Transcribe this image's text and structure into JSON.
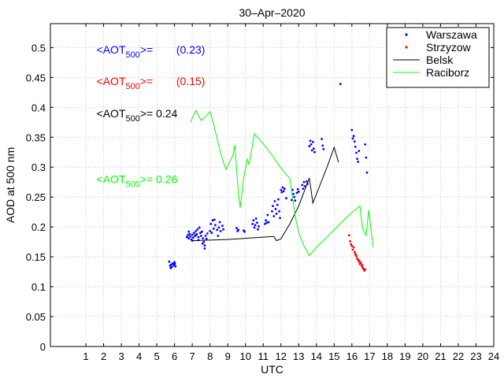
{
  "chart_data": {
    "type": "scatter",
    "title": "30–Apr–2020",
    "xlabel": "UTC",
    "ylabel": "AOD at 500 nm",
    "xlim": [
      -1,
      24
    ],
    "ylim": [
      0,
      0.54
    ],
    "x_ticks": [
      1,
      2,
      3,
      4,
      5,
      6,
      7,
      8,
      9,
      10,
      11,
      12,
      13,
      14,
      15,
      16,
      17,
      18,
      19,
      20,
      21,
      22,
      23,
      24
    ],
    "y_ticks": [
      0,
      0.05,
      0.1,
      0.15,
      0.2,
      0.25,
      0.3,
      0.35,
      0.4,
      0.45,
      0.5
    ],
    "grid": true,
    "legend_position": "top-right",
    "annotations": [
      {
        "prefix": "<AOT",
        "sub": "500",
        "suffix": ">=",
        "value": "(0.23)",
        "color": "#0000ff",
        "x": 1.6,
        "y": 0.49,
        "value_x": 6.1
      },
      {
        "prefix": "<AOT",
        "sub": "500",
        "suffix": ">=",
        "value": "(0.15)",
        "color": "#ff0000",
        "x": 1.6,
        "y": 0.437,
        "value_x": 6.1
      },
      {
        "prefix": "<AOT",
        "sub": "500",
        "suffix": ">= ",
        "value": "0.24",
        "color": "#000000",
        "x": 1.6,
        "y": 0.383,
        "value_x": null
      },
      {
        "prefix": "<AOT",
        "sub": "500",
        "suffix": ">= ",
        "value": "0.26",
        "color": "#00ff00",
        "x": 1.6,
        "y": 0.273,
        "value_x": null
      }
    ],
    "series": [
      {
        "name": "Warszawa",
        "kind": "points",
        "color": "#0000ff",
        "points": [
          [
            5.7,
            0.142
          ],
          [
            5.75,
            0.135
          ],
          [
            5.8,
            0.137
          ],
          [
            5.85,
            0.133
          ],
          [
            5.9,
            0.139
          ],
          [
            5.95,
            0.136
          ],
          [
            6.0,
            0.141
          ],
          [
            6.05,
            0.134
          ],
          [
            5.78,
            0.131
          ],
          [
            6.02,
            0.138
          ],
          [
            6.7,
            0.183
          ],
          [
            6.75,
            0.186
          ],
          [
            6.8,
            0.181
          ],
          [
            6.85,
            0.188
          ],
          [
            6.9,
            0.184
          ],
          [
            6.95,
            0.179
          ],
          [
            7.0,
            0.187
          ],
          [
            7.05,
            0.182
          ],
          [
            7.1,
            0.19
          ],
          [
            7.15,
            0.185
          ],
          [
            7.2,
            0.193
          ],
          [
            7.25,
            0.188
          ],
          [
            7.3,
            0.196
          ],
          [
            7.35,
            0.183
          ],
          [
            7.4,
            0.199
          ],
          [
            7.45,
            0.19
          ],
          [
            7.5,
            0.185
          ],
          [
            7.55,
            0.192
          ],
          [
            7.6,
            0.181
          ],
          [
            7.65,
            0.175
          ],
          [
            7.7,
            0.169
          ],
          [
            7.75,
            0.185
          ],
          [
            7.8,
            0.18
          ],
          [
            7.85,
            0.189
          ],
          [
            6.8,
            0.192
          ],
          [
            7.0,
            0.177
          ],
          [
            7.2,
            0.186
          ],
          [
            7.35,
            0.178
          ],
          [
            7.58,
            0.172
          ],
          [
            7.7,
            0.164
          ],
          [
            8.0,
            0.193
          ],
          [
            8.05,
            0.205
          ],
          [
            8.1,
            0.19
          ],
          [
            8.15,
            0.211
          ],
          [
            8.2,
            0.197
          ],
          [
            8.3,
            0.203
          ],
          [
            8.4,
            0.195
          ],
          [
            8.5,
            0.199
          ],
          [
            8.55,
            0.208
          ],
          [
            8.6,
            0.193
          ],
          [
            8.7,
            0.202
          ],
          [
            8.75,
            0.196
          ],
          [
            8.45,
            0.185
          ],
          [
            8.25,
            0.212
          ],
          [
            9.5,
            0.198
          ],
          [
            9.55,
            0.193
          ],
          [
            9.6,
            0.195
          ],
          [
            9.9,
            0.194
          ],
          [
            9.95,
            0.192
          ],
          [
            10.4,
            0.205
          ],
          [
            10.45,
            0.211
          ],
          [
            10.5,
            0.199
          ],
          [
            10.55,
            0.203
          ],
          [
            10.6,
            0.214
          ],
          [
            10.65,
            0.207
          ],
          [
            10.7,
            0.196
          ],
          [
            10.75,
            0.201
          ],
          [
            11.1,
            0.205
          ],
          [
            11.15,
            0.211
          ],
          [
            11.2,
            0.207
          ],
          [
            11.25,
            0.22
          ],
          [
            11.3,
            0.208
          ],
          [
            11.5,
            0.226
          ],
          [
            11.55,
            0.235
          ],
          [
            11.6,
            0.218
          ],
          [
            11.65,
            0.243
          ],
          [
            11.7,
            0.23
          ],
          [
            11.75,
            0.222
          ],
          [
            11.8,
            0.237
          ],
          [
            11.85,
            0.246
          ],
          [
            11.9,
            0.226
          ],
          [
            11.95,
            0.215
          ],
          [
            12.0,
            0.262
          ],
          [
            12.05,
            0.258
          ],
          [
            12.1,
            0.266
          ],
          [
            12.15,
            0.26
          ],
          [
            12.2,
            0.264
          ],
          [
            12.3,
            0.248
          ],
          [
            12.6,
            0.245
          ],
          [
            12.65,
            0.262
          ],
          [
            12.7,
            0.255
          ],
          [
            12.75,
            0.25
          ],
          [
            12.8,
            0.244
          ],
          [
            12.9,
            0.257
          ],
          [
            12.95,
            0.263
          ],
          [
            13.0,
            0.259
          ],
          [
            13.2,
            0.27
          ],
          [
            13.25,
            0.264
          ],
          [
            13.3,
            0.275
          ],
          [
            13.35,
            0.268
          ],
          [
            13.45,
            0.276
          ],
          [
            13.5,
            0.272
          ],
          [
            13.6,
            0.335
          ],
          [
            13.65,
            0.344
          ],
          [
            13.7,
            0.338
          ],
          [
            13.75,
            0.328
          ],
          [
            13.8,
            0.342
          ],
          [
            13.85,
            0.331
          ],
          [
            13.9,
            0.325
          ],
          [
            14.3,
            0.347
          ],
          [
            14.35,
            0.336
          ],
          [
            14.4,
            0.33
          ],
          [
            15.35,
            0.439
          ],
          [
            16.0,
            0.362
          ],
          [
            16.05,
            0.348
          ],
          [
            16.1,
            0.352
          ],
          [
            16.15,
            0.343
          ],
          [
            16.2,
            0.334
          ],
          [
            16.25,
            0.324
          ],
          [
            16.3,
            0.314
          ],
          [
            16.35,
            0.309
          ],
          [
            16.4,
            0.327
          ],
          [
            16.75,
            0.338
          ],
          [
            16.8,
            0.316
          ],
          [
            16.85,
            0.291
          ]
        ]
      },
      {
        "name": "Strzyzow",
        "kind": "points",
        "color": "#ff0000",
        "points": [
          [
            15.85,
            0.186
          ],
          [
            15.9,
            0.176
          ],
          [
            15.95,
            0.171
          ],
          [
            16.0,
            0.168
          ],
          [
            16.05,
            0.162
          ],
          [
            16.1,
            0.166
          ],
          [
            16.15,
            0.158
          ],
          [
            16.2,
            0.155
          ],
          [
            16.25,
            0.151
          ],
          [
            16.3,
            0.147
          ],
          [
            16.35,
            0.145
          ],
          [
            16.4,
            0.142
          ],
          [
            16.45,
            0.138
          ],
          [
            16.5,
            0.14
          ],
          [
            16.55,
            0.135
          ],
          [
            16.6,
            0.132
          ],
          [
            16.65,
            0.13
          ],
          [
            16.7,
            0.127
          ],
          [
            16.75,
            0.129
          ],
          [
            16.42,
            0.143
          ],
          [
            16.22,
            0.153
          ],
          [
            16.58,
            0.136
          ]
        ]
      },
      {
        "name": "Belsk",
        "kind": "line",
        "color": "#000000",
        "points": [
          [
            7.0,
            0.177
          ],
          [
            8.0,
            0.178
          ],
          [
            9.0,
            0.179
          ],
          [
            10.0,
            0.181
          ],
          [
            11.0,
            0.183
          ],
          [
            11.6,
            0.184
          ],
          [
            11.75,
            0.177
          ],
          [
            12.0,
            0.18
          ],
          [
            12.5,
            0.205
          ],
          [
            13.0,
            0.235
          ],
          [
            13.6,
            0.282
          ],
          [
            13.8,
            0.24
          ],
          [
            14.2,
            0.27
          ],
          [
            14.6,
            0.3
          ],
          [
            15.0,
            0.333
          ],
          [
            15.25,
            0.308
          ]
        ]
      },
      {
        "name": "Raciborz",
        "kind": "line",
        "color": "#00ff00",
        "points": [
          [
            6.9,
            0.375
          ],
          [
            7.2,
            0.395
          ],
          [
            7.5,
            0.378
          ],
          [
            7.7,
            0.383
          ],
          [
            8.0,
            0.393
          ],
          [
            8.2,
            0.372
          ],
          [
            8.6,
            0.323
          ],
          [
            8.9,
            0.296
          ],
          [
            9.3,
            0.321
          ],
          [
            9.4,
            0.337
          ],
          [
            9.6,
            0.256
          ],
          [
            9.7,
            0.232
          ],
          [
            9.9,
            0.282
          ],
          [
            10.1,
            0.314
          ],
          [
            10.2,
            0.304
          ],
          [
            10.5,
            0.356
          ],
          [
            11.0,
            0.339
          ],
          [
            11.5,
            0.32
          ],
          [
            12.0,
            0.298
          ],
          [
            12.5,
            0.281
          ],
          [
            12.8,
            0.218
          ],
          [
            13.0,
            0.191
          ],
          [
            13.3,
            0.168
          ],
          [
            13.6,
            0.152
          ],
          [
            14.0,
            0.166
          ],
          [
            14.5,
            0.18
          ],
          [
            15.0,
            0.195
          ],
          [
            15.5,
            0.21
          ],
          [
            16.0,
            0.224
          ],
          [
            16.45,
            0.235
          ],
          [
            16.6,
            0.197
          ],
          [
            16.8,
            0.186
          ],
          [
            16.95,
            0.228
          ],
          [
            17.1,
            0.19
          ],
          [
            17.2,
            0.166
          ]
        ]
      }
    ]
  }
}
